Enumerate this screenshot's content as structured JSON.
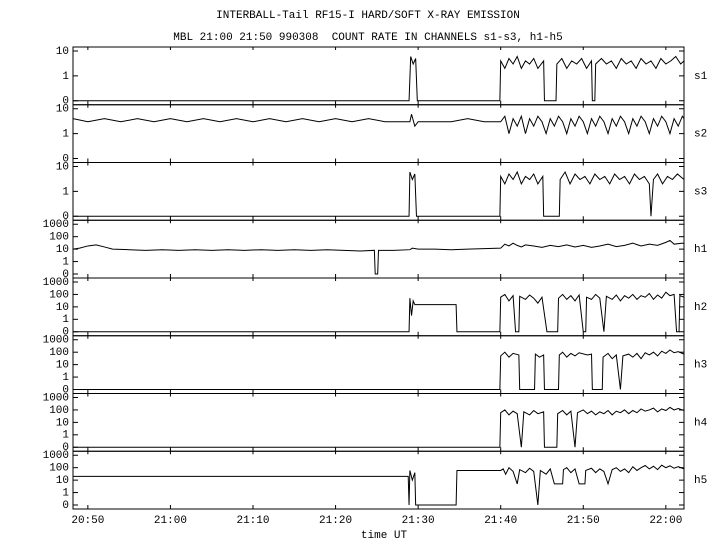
{
  "chart_data": {
    "type": "line",
    "title": "INTERBALL-Tail RF15-I HARD/SOFT X-RAY EMISSION",
    "subtitle": "MBL 21:00 21:50 990308  COUNT RATE IN CHANNELS s1-s3, h1-h5",
    "xlabel": "time UT",
    "xlim": [
      1248.2,
      1322.2
    ],
    "xticks": [
      {
        "value": 1250,
        "label": "20:50"
      },
      {
        "value": 1260,
        "label": "21:00"
      },
      {
        "value": 1270,
        "label": "21:10"
      },
      {
        "value": 1280,
        "label": "21:20"
      },
      {
        "value": 1290,
        "label": "21:30"
      },
      {
        "value": 1300,
        "label": "21:40"
      },
      {
        "value": 1310,
        "label": "21:50"
      },
      {
        "value": 1320,
        "label": "22:00"
      }
    ],
    "yscale": "symlog",
    "color": "#000000",
    "panels": [
      {
        "name": "s1",
        "ylim": [
          0,
          10
        ],
        "yticks": [
          0,
          1,
          10
        ],
        "x": [
          1248.2,
          1288.9,
          1289.1,
          1289.4,
          1289.7,
          1289.9,
          1299.9,
          1300,
          1300.5,
          1301,
          1301.5,
          1302,
          1302.5,
          1303,
          1303.5,
          1304,
          1304.5,
          1305.2,
          1305.3,
          1306.7,
          1306.8,
          1307.4,
          1308,
          1308.6,
          1309.2,
          1309.8,
          1310.4,
          1311,
          1311.1,
          1311.4,
          1311.5,
          1312.2,
          1312.8,
          1313.4,
          1314,
          1314.6,
          1315.2,
          1315.8,
          1316.4,
          1317,
          1317.6,
          1318.2,
          1318.8,
          1319.4,
          1320,
          1320.6,
          1321.2,
          1321.8,
          1322.2
        ],
        "values": [
          0,
          0,
          6,
          3,
          5,
          0,
          0,
          4,
          2,
          5,
          3,
          6,
          2,
          4,
          3,
          5,
          2,
          4,
          0,
          0,
          3,
          5,
          2,
          4,
          3,
          5,
          2,
          4,
          0,
          0,
          3,
          5,
          3,
          4,
          2,
          5,
          3,
          4,
          2,
          5,
          3,
          4,
          2,
          5,
          3,
          4,
          6,
          3,
          4
        ]
      },
      {
        "name": "s2",
        "ylim": [
          0,
          10
        ],
        "yticks": [
          0,
          1,
          10
        ],
        "x": [
          1248.2,
          1250,
          1252,
          1254,
          1256,
          1258,
          1260,
          1262,
          1264,
          1266,
          1268,
          1270,
          1272,
          1274,
          1276,
          1278,
          1280,
          1282,
          1284,
          1286,
          1288,
          1289,
          1289.2,
          1289.6,
          1290,
          1292,
          1294,
          1296,
          1298,
          1300,
          1300.5,
          1301,
          1301.5,
          1302,
          1302.5,
          1303,
          1303.5,
          1304,
          1304.5,
          1305,
          1305.5,
          1306,
          1306.5,
          1307,
          1307.5,
          1308,
          1308.5,
          1309,
          1309.5,
          1310,
          1310.5,
          1311,
          1311.5,
          1312,
          1312.5,
          1313,
          1313.5,
          1314,
          1314.5,
          1315,
          1315.5,
          1316,
          1316.5,
          1317,
          1317.5,
          1318,
          1318.5,
          1319,
          1319.5,
          1320,
          1320.5,
          1321,
          1321.5,
          1322,
          1322.2
        ],
        "values": [
          4,
          3,
          4,
          3,
          4,
          3,
          4,
          3,
          4,
          3,
          4,
          3,
          4,
          3,
          4,
          3,
          4,
          3,
          4,
          3,
          3,
          3,
          6,
          2,
          3,
          3,
          3,
          4,
          3,
          3,
          5,
          1,
          4,
          2,
          5,
          1,
          4,
          2,
          5,
          3,
          1,
          4,
          2,
          5,
          3,
          1,
          4,
          2,
          5,
          3,
          1,
          4,
          2,
          5,
          3,
          1,
          4,
          2,
          5,
          3,
          1,
          4,
          2,
          5,
          3,
          1,
          4,
          2,
          5,
          3,
          1,
          4,
          2,
          5,
          4
        ]
      },
      {
        "name": "s3",
        "ylim": [
          0,
          10
        ],
        "yticks": [
          0,
          1,
          10
        ],
        "x": [
          1248.2,
          1288.9,
          1289,
          1289.3,
          1289.6,
          1289.8,
          1299.9,
          1300,
          1300.5,
          1301,
          1301.5,
          1302,
          1302.5,
          1303,
          1303.5,
          1304,
          1304.5,
          1305.1,
          1305.2,
          1307.1,
          1307.2,
          1307.8,
          1308.4,
          1309,
          1309.6,
          1310.2,
          1310.8,
          1311.4,
          1312,
          1312.6,
          1313.2,
          1313.8,
          1314.4,
          1315,
          1315.6,
          1316.2,
          1316.8,
          1317.4,
          1318,
          1318.2,
          1318.5,
          1319,
          1319.6,
          1320.2,
          1320.8,
          1321.4,
          1322.2
        ],
        "values": [
          0,
          0,
          6,
          3,
          5,
          0,
          0,
          4,
          2,
          5,
          3,
          6,
          2,
          4,
          3,
          5,
          2,
          4,
          0,
          0,
          3,
          6,
          2,
          5,
          3,
          4,
          2,
          5,
          3,
          4,
          2,
          5,
          3,
          4,
          2,
          5,
          3,
          4,
          2,
          0,
          3,
          5,
          2,
          4,
          3,
          5,
          3
        ]
      },
      {
        "name": "h1",
        "ylim": [
          0,
          1000
        ],
        "yticks": [
          0,
          1,
          10,
          100,
          1000
        ],
        "x": [
          1248.2,
          1249,
          1250,
          1251,
          1252,
          1253,
          1255,
          1257,
          1259,
          1261,
          1263,
          1265,
          1267,
          1269,
          1271,
          1273,
          1275,
          1277,
          1279,
          1281,
          1283,
          1284.7,
          1284.8,
          1285.1,
          1285.2,
          1287,
          1289,
          1289.3,
          1290,
          1292,
          1294,
          1296,
          1298,
          1300,
          1300.5,
          1301,
          1301.5,
          1302,
          1302.5,
          1303,
          1304,
          1305,
          1306,
          1307,
          1308,
          1309,
          1310,
          1311,
          1312,
          1313,
          1314,
          1315,
          1316,
          1317,
          1318,
          1319,
          1320,
          1320.5,
          1321,
          1322,
          1322.2
        ],
        "values": [
          10,
          12,
          18,
          22,
          15,
          10,
          9,
          8,
          9,
          8,
          9,
          8,
          9,
          8,
          9,
          8,
          9,
          8,
          9,
          8,
          7,
          8,
          0,
          0,
          8,
          8,
          9,
          12,
          10,
          10,
          9,
          10,
          11,
          12,
          25,
          18,
          30,
          20,
          15,
          22,
          18,
          14,
          20,
          16,
          22,
          15,
          20,
          14,
          18,
          25,
          16,
          20,
          30,
          18,
          25,
          20,
          35,
          50,
          25,
          30,
          28
        ]
      },
      {
        "name": "h2",
        "ylim": [
          0,
          1000
        ],
        "yticks": [
          0,
          1,
          10,
          100,
          1000
        ],
        "x": [
          1248.2,
          1288.9,
          1289,
          1289.2,
          1289.4,
          1289.6,
          1294.6,
          1294.7,
          1299.9,
          1300,
          1300.5,
          1301,
          1301.5,
          1301.8,
          1302.2,
          1302.3,
          1303,
          1303.5,
          1304,
          1304.5,
          1305,
          1305.6,
          1306.9,
          1307,
          1307.5,
          1308,
          1308.5,
          1309,
          1309.5,
          1310,
          1310.3,
          1310.4,
          1311,
          1311.5,
          1312,
          1312.5,
          1312.8,
          1313.5,
          1314,
          1314.5,
          1315,
          1315.5,
          1316,
          1316.5,
          1317,
          1317.5,
          1318,
          1318.5,
          1319,
          1319.5,
          1320,
          1320.5,
          1321,
          1321.3,
          1321.6,
          1321.7,
          1322.2
        ],
        "values": [
          0,
          0,
          50,
          2,
          30,
          15,
          15,
          0,
          0,
          60,
          100,
          30,
          80,
          0,
          0,
          70,
          40,
          90,
          50,
          20,
          60,
          0,
          0,
          50,
          100,
          40,
          80,
          30,
          90,
          0,
          0,
          60,
          40,
          100,
          50,
          0,
          70,
          40,
          90,
          30,
          80,
          50,
          100,
          40,
          80,
          60,
          120,
          40,
          90,
          50,
          150,
          80,
          100,
          0,
          0,
          80,
          60
        ]
      },
      {
        "name": "h3",
        "ylim": [
          0,
          1000
        ],
        "yticks": [
          0,
          1,
          10,
          100,
          1000
        ],
        "x": [
          1248.2,
          1299.9,
          1300,
          1300.5,
          1301,
          1301.5,
          1302.2,
          1302.3,
          1304.1,
          1304.2,
          1304.7,
          1305.2,
          1305.3,
          1307,
          1307.1,
          1307.5,
          1308,
          1308.5,
          1309,
          1309.5,
          1310.5,
          1311,
          1311.1,
          1312.3,
          1312.4,
          1313,
          1313.5,
          1314,
          1314.5,
          1314.8,
          1315.5,
          1316,
          1316.5,
          1317,
          1317.5,
          1318,
          1318.5,
          1319,
          1319.5,
          1320,
          1320.5,
          1321,
          1321.5,
          1322.2
        ],
        "values": [
          0,
          0,
          50,
          100,
          40,
          80,
          60,
          0,
          0,
          70,
          40,
          60,
          0,
          0,
          60,
          100,
          40,
          80,
          50,
          90,
          60,
          70,
          0,
          0,
          40,
          80,
          30,
          60,
          0,
          50,
          70,
          40,
          80,
          30,
          90,
          60,
          100,
          50,
          120,
          80,
          150,
          90,
          110,
          70
        ]
      },
      {
        "name": "h4",
        "ylim": [
          0,
          1000
        ],
        "yticks": [
          0,
          1,
          10,
          100,
          1000
        ],
        "x": [
          1248.2,
          1299.9,
          1300,
          1300.5,
          1301,
          1301.5,
          1302,
          1302.5,
          1302.8,
          1303.5,
          1304,
          1304.5,
          1305.2,
          1305.3,
          1306.8,
          1306.9,
          1307.5,
          1308,
          1308.5,
          1309,
          1309.3,
          1310,
          1310.5,
          1311,
          1311.5,
          1312,
          1312.5,
          1313,
          1313.5,
          1314,
          1314.5,
          1315,
          1315.5,
          1316,
          1316.5,
          1317,
          1317.5,
          1318,
          1318.5,
          1319,
          1319.5,
          1320,
          1320.5,
          1321,
          1321.5,
          1322.2
        ],
        "values": [
          0,
          0,
          60,
          100,
          40,
          80,
          50,
          0,
          70,
          40,
          90,
          50,
          70,
          0,
          0,
          50,
          90,
          40,
          80,
          0,
          60,
          100,
          50,
          80,
          40,
          70,
          50,
          90,
          40,
          80,
          60,
          100,
          50,
          90,
          60,
          120,
          80,
          100,
          140,
          70,
          120,
          90,
          160,
          100,
          130,
          90
        ]
      },
      {
        "name": "h5",
        "ylim": [
          0,
          1000
        ],
        "yticks": [
          0,
          1,
          10,
          100,
          1000
        ],
        "x": [
          1248.2,
          1288.8,
          1288.9,
          1289,
          1289.3,
          1289.6,
          1289.7,
          1294.6,
          1294.7,
          1300,
          1300.3,
          1300.6,
          1301,
          1301.5,
          1302,
          1302.3,
          1303,
          1303.5,
          1304,
          1304.5,
          1304.8,
          1305.5,
          1306,
          1306.5,
          1307.5,
          1307.6,
          1308,
          1308.5,
          1309,
          1309.5,
          1310.2,
          1310.3,
          1311,
          1311.5,
          1312,
          1312.5,
          1313,
          1313.5,
          1314,
          1314.5,
          1315,
          1315.5,
          1316,
          1316.5,
          1317,
          1317.5,
          1318,
          1318.5,
          1319,
          1319.5,
          1320,
          1320.5,
          1321,
          1321.5,
          1322.2
        ],
        "values": [
          20,
          20,
          0,
          60,
          10,
          40,
          0,
          0,
          60,
          60,
          80,
          30,
          100,
          50,
          5,
          70,
          40,
          90,
          50,
          0,
          60,
          30,
          80,
          5,
          5,
          70,
          100,
          40,
          80,
          5,
          5,
          60,
          90,
          40,
          80,
          50,
          5,
          70,
          100,
          50,
          80,
          40,
          120,
          60,
          100,
          150,
          80,
          130,
          70,
          160,
          100,
          140,
          90,
          120,
          80
        ]
      }
    ]
  }
}
